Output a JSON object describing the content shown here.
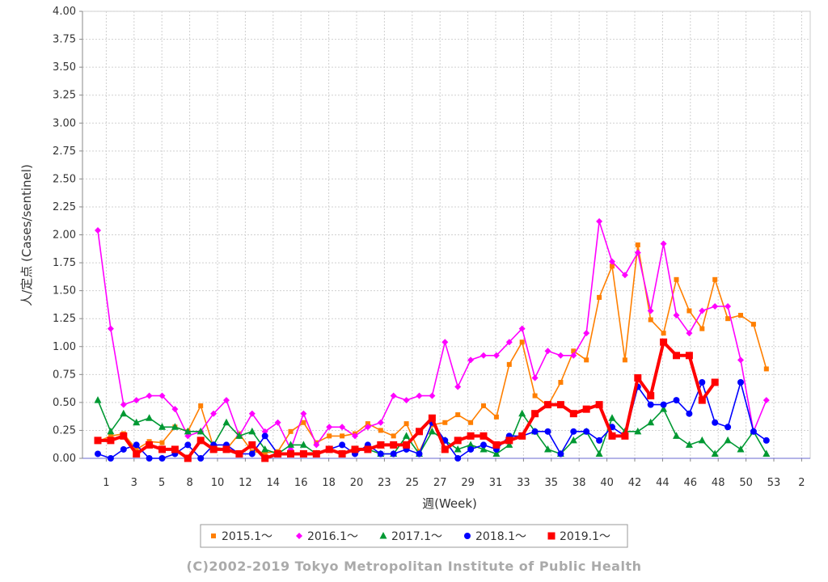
{
  "chart_data": {
    "type": "line",
    "xlabel": "週(Week)",
    "ylabel": "人/定点 (Cases/sentinel)",
    "ylim": [
      0,
      4
    ],
    "yticks": [
      "0.00",
      "0.25",
      "0.50",
      "0.75",
      "1.00",
      "1.25",
      "1.50",
      "1.75",
      "2.00",
      "2.25",
      "2.50",
      "2.75",
      "3.00",
      "3.25",
      "3.50",
      "3.75",
      "4.00"
    ],
    "xticks": [
      "1",
      "3",
      "5",
      "8",
      "10",
      "12",
      "14",
      "16",
      "18",
      "20",
      "23",
      "25",
      "27",
      "29",
      "31",
      "33",
      "35",
      "38",
      "40",
      "42",
      "44",
      "46",
      "48",
      "50",
      "53",
      "2"
    ],
    "grid": true,
    "legend_position": "bottom",
    "series": [
      {
        "name": "2015.1～",
        "color": "#ff7f00",
        "marker": "square-small",
        "values": [
          0.15,
          0.2,
          0.22,
          0.08,
          0.15,
          0.14,
          0.28,
          0.24,
          0.47,
          0.1,
          0.08,
          0.22,
          0.06,
          0.05,
          0.06,
          0.24,
          0.32,
          0.14,
          0.2,
          0.2,
          0.22,
          0.31,
          0.25,
          0.2,
          0.31,
          0.06,
          0.3,
          0.32,
          0.39,
          0.32,
          0.47,
          0.37,
          0.84,
          1.04,
          0.56,
          0.47,
          0.68,
          0.96,
          0.88,
          1.44,
          1.72,
          0.88,
          1.91,
          1.24,
          1.12,
          1.6,
          1.32,
          1.16,
          1.6,
          1.25,
          1.28,
          1.2,
          0.8
        ]
      },
      {
        "name": "2016.1～",
        "color": "#ff00ff",
        "marker": "diamond",
        "values": [
          2.04,
          1.16,
          0.48,
          0.52,
          0.56,
          0.56,
          0.44,
          0.2,
          0.24,
          0.4,
          0.52,
          0.2,
          0.4,
          0.24,
          0.32,
          0.08,
          0.4,
          0.12,
          0.28,
          0.28,
          0.2,
          0.28,
          0.32,
          0.56,
          0.52,
          0.56,
          0.56,
          1.04,
          0.64,
          0.88,
          0.92,
          0.92,
          1.04,
          1.16,
          0.72,
          0.96,
          0.92,
          0.92,
          1.12,
          2.12,
          1.76,
          1.64,
          1.84,
          1.32,
          1.92,
          1.28,
          1.12,
          1.32,
          1.36,
          1.36,
          0.88,
          0.24,
          0.52
        ]
      },
      {
        "name": "2017.1～",
        "color": "#009933",
        "marker": "triangle",
        "values": [
          0.52,
          0.24,
          0.4,
          0.32,
          0.36,
          0.28,
          0.28,
          0.24,
          0.24,
          0.12,
          0.32,
          0.2,
          0.24,
          0.08,
          0.04,
          0.12,
          0.12,
          0.04,
          0.08,
          0.04,
          0.08,
          0.08,
          0.04,
          0.04,
          0.2,
          0.04,
          0.24,
          0.16,
          0.08,
          0.12,
          0.08,
          0.04,
          0.12,
          0.4,
          0.24,
          0.08,
          0.04,
          0.16,
          0.24,
          0.04,
          0.36,
          0.24,
          0.24,
          0.32,
          0.44,
          0.2,
          0.12,
          0.16,
          0.04,
          0.16,
          0.08,
          0.24,
          0.04
        ]
      },
      {
        "name": "2018.1～",
        "color": "#0000ff",
        "marker": "circle",
        "values": [
          0.04,
          0.0,
          0.08,
          0.12,
          0.0,
          0.0,
          0.04,
          0.12,
          0.0,
          0.12,
          0.12,
          0.04,
          0.04,
          0.2,
          0.04,
          0.04,
          0.04,
          0.04,
          0.08,
          0.12,
          0.04,
          0.12,
          0.04,
          0.04,
          0.08,
          0.04,
          0.32,
          0.16,
          0.0,
          0.08,
          0.12,
          0.08,
          0.2,
          0.2,
          0.24,
          0.24,
          0.04,
          0.24,
          0.24,
          0.16,
          0.28,
          0.2,
          0.64,
          0.48,
          0.48,
          0.52,
          0.4,
          0.68,
          0.32,
          0.28,
          0.68,
          0.24,
          0.16
        ]
      },
      {
        "name": "2019.1～",
        "color": "#ff0000",
        "marker": "square-large",
        "values": [
          0.16,
          0.16,
          0.2,
          0.04,
          0.12,
          0.08,
          0.08,
          0.0,
          0.16,
          0.08,
          0.08,
          0.04,
          0.12,
          0.0,
          0.04,
          0.04,
          0.04,
          0.04,
          0.08,
          0.04,
          0.08,
          0.08,
          0.12,
          0.12,
          0.12,
          0.24,
          0.36,
          0.08,
          0.16,
          0.2,
          0.2,
          0.12,
          0.16,
          0.2,
          0.4,
          0.48,
          0.48,
          0.4,
          0.44,
          0.48,
          0.2,
          0.2,
          0.72,
          0.56,
          1.04,
          0.92,
          0.92,
          0.52,
          0.68
        ]
      }
    ]
  },
  "footer": {
    "credit": "(C)2002-2019 Tokyo Metropolitan Institute of Public Health"
  }
}
